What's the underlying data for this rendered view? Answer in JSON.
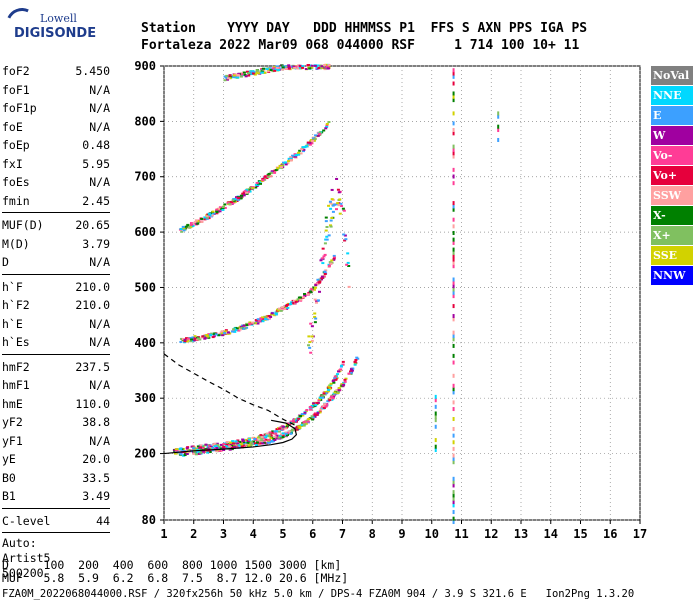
{
  "logo": {
    "line1": "Lowell",
    "line2": "DIGISONDE"
  },
  "header": {
    "row1": "Station    YYYY DAY   DDD HHMMSS P1  FFS S AXN PPS IGA PS",
    "row2": "Fortaleza 2022 Mar09 068 044000 RSF     1 714 100 10+ 11"
  },
  "params": [
    {
      "name": "foF2",
      "value": "5.450"
    },
    {
      "name": "foF1",
      "value": "N/A"
    },
    {
      "name": "foF1p",
      "value": "N/A"
    },
    {
      "name": "foE",
      "value": "N/A"
    },
    {
      "name": "foEp",
      "value": "0.48"
    },
    {
      "name": "fxI",
      "value": "5.95"
    },
    {
      "name": "foEs",
      "value": "N/A"
    },
    {
      "name": "fmin",
      "value": "2.45"
    },
    {
      "sep": true
    },
    {
      "name": "MUF(D)",
      "value": "20.65"
    },
    {
      "name": "M(D)",
      "value": "3.79"
    },
    {
      "name": "D",
      "value": "N/A"
    },
    {
      "sep": true
    },
    {
      "name": "h`F",
      "value": "210.0"
    },
    {
      "name": "h`F2",
      "value": "210.0"
    },
    {
      "name": "h`E",
      "value": "N/A"
    },
    {
      "name": "h`Es",
      "value": "N/A"
    },
    {
      "sep": true
    },
    {
      "name": "hmF2",
      "value": "237.5"
    },
    {
      "name": "hmF1",
      "value": "N/A"
    },
    {
      "name": "hmE",
      "value": "110.0"
    },
    {
      "name": "yF2",
      "value": "38.8"
    },
    {
      "name": "yF1",
      "value": "N/A"
    },
    {
      "name": "yE",
      "value": "20.0"
    },
    {
      "name": "B0",
      "value": "33.5"
    },
    {
      "name": "B1",
      "value": "3.49"
    },
    {
      "sep": true
    },
    {
      "name": "C-level",
      "value": "44"
    },
    {
      "sep": true
    }
  ],
  "auto": [
    "Auto:",
    "Artist5",
    "500200"
  ],
  "legend": [
    {
      "label": "NoVal",
      "color": "#808080"
    },
    {
      "label": "NNE",
      "color": "#00d8ff"
    },
    {
      "label": "E",
      "color": "#3ca0ff"
    },
    {
      "label": "W",
      "color": "#a000a0"
    },
    {
      "label": "Vo-",
      "color": "#ff3c96"
    },
    {
      "label": "Vo+",
      "color": "#e6003c"
    },
    {
      "label": "SSW",
      "color": "#ffa0a0"
    },
    {
      "label": "X-",
      "color": "#008000"
    },
    {
      "label": "X+",
      "color": "#80c060"
    },
    {
      "label": "SSE",
      "color": "#d2d200"
    },
    {
      "label": "NNW",
      "color": "#0000ff"
    }
  ],
  "footer": {
    "line1": "D     100  200  400  600  800 1000 1500 3000 [km]",
    "line2": "MUF   5.8  5.9  6.2  6.8  7.5  8.7 12.0 20.6 [MHz]",
    "line3": "FZA0M_2022068044000.RSF / 320fx256h 50 kHz 5.0 km / DPS-4 FZA0M 904 / 3.9 S 321.6 E   Ion2Png 1.3.20"
  },
  "chart_data": {
    "type": "scatter",
    "xlim": [
      1,
      17
    ],
    "ylim": [
      80,
      900
    ],
    "xticks": [
      1,
      2,
      3,
      4,
      5,
      6,
      7,
      8,
      9,
      10,
      11,
      12,
      13,
      14,
      15,
      16,
      17
    ],
    "yticks": [
      80,
      200,
      300,
      400,
      500,
      600,
      700,
      800,
      900
    ],
    "grid": "dotted",
    "traces": [
      {
        "name": "F2 O-trace",
        "x": [
          1.3,
          2.0,
          3.0,
          4.0,
          4.6,
          5.0,
          5.4,
          5.8,
          6.2,
          6.5,
          6.8,
          7.0
        ],
        "y": [
          205,
          212,
          218,
          228,
          238,
          250,
          262,
          280,
          300,
          320,
          345,
          370
        ]
      },
      {
        "name": "F2 X-trace",
        "x": [
          1.5,
          2.5,
          3.5,
          4.5,
          5.2,
          5.8,
          6.3,
          6.8,
          7.2,
          7.5
        ],
        "y": [
          200,
          208,
          215,
          225,
          240,
          260,
          285,
          315,
          345,
          380
        ]
      },
      {
        "name": "2F O-trace",
        "x": [
          1.5,
          2.0,
          2.5,
          3.0,
          3.5,
          4.0,
          4.5,
          5.0,
          5.5,
          6.0,
          6.4,
          6.7
        ],
        "y": [
          405,
          410,
          415,
          420,
          428,
          438,
          450,
          465,
          480,
          500,
          530,
          560
        ]
      },
      {
        "name": "3F O-trace",
        "x": [
          1.5,
          2.0,
          2.5,
          3.0,
          3.5,
          4.0,
          4.5,
          5.0,
          5.5,
          6.0,
          6.5
        ],
        "y": [
          605,
          618,
          632,
          648,
          665,
          685,
          705,
          725,
          745,
          770,
          800
        ]
      },
      {
        "name": "4F O-trace",
        "x": [
          3.0,
          3.5,
          4.0,
          4.5,
          5.0,
          5.5,
          6.0,
          6.5
        ],
        "y": [
          880,
          885,
          890,
          895,
          900,
          900,
          900,
          900
        ]
      },
      {
        "name": "Spread F",
        "x": [
          5.8,
          6.0,
          6.2,
          6.4,
          6.6,
          6.8,
          7.0,
          7.2
        ],
        "y": [
          380,
          450,
          520,
          600,
          650,
          680,
          620,
          500
        ]
      }
    ],
    "profile": {
      "name": "electron density profile",
      "x": [
        1.0,
        2.0,
        3.0,
        4.0,
        4.6,
        5.0,
        5.3,
        5.45,
        5.4,
        5.1,
        4.6
      ],
      "y": [
        200,
        205,
        208,
        212,
        216,
        220,
        226,
        234,
        245,
        255,
        260
      ]
    },
    "profile_extrapolated": {
      "x": [
        1.0,
        1.5,
        2.0,
        2.5,
        3.0,
        3.5,
        4.0,
        4.5,
        5.0,
        5.45
      ],
      "y": [
        380,
        360,
        345,
        330,
        316,
        300,
        288,
        278,
        262,
        250
      ]
    },
    "vertical_echoes": [
      {
        "x": 10.1,
        "y": [
          210,
          310
        ]
      },
      {
        "x": 10.7,
        "y": [
          80,
          900
        ]
      },
      {
        "x": 12.2,
        "y": [
          770,
          820
        ]
      }
    ]
  }
}
